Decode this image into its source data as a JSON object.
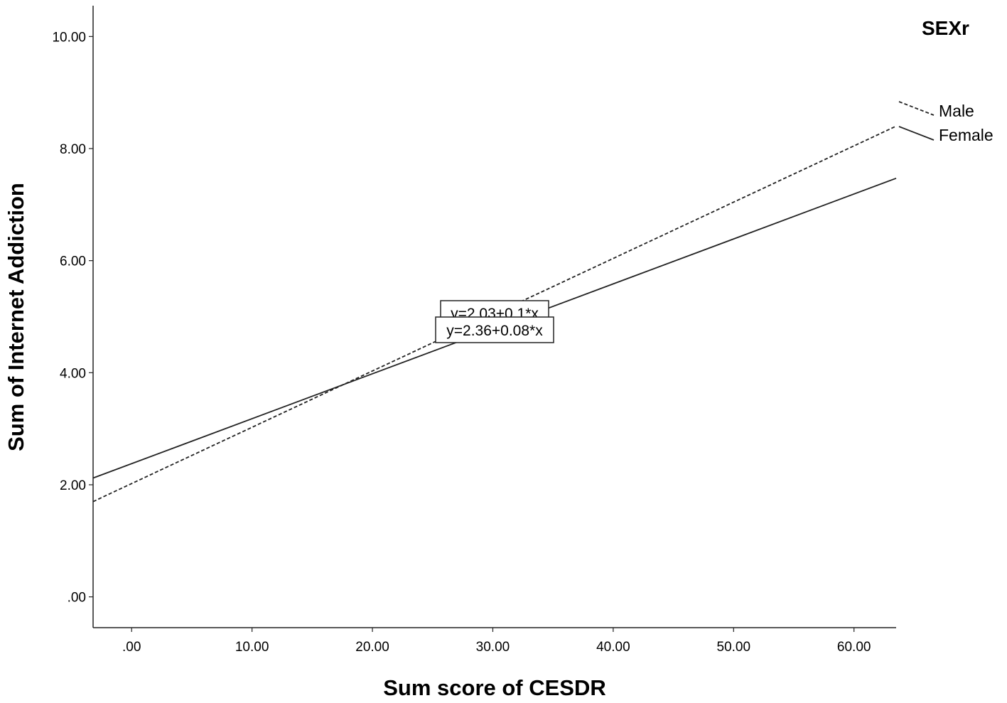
{
  "chart_data": {
    "type": "line",
    "xlabel": "Sum score of CESDR",
    "ylabel": "Sum of Internet Addiction",
    "xlim": [
      -3.2,
      63.5
    ],
    "ylim": [
      -0.55,
      10.55
    ],
    "x_ticks": [
      ".00",
      "10.00",
      "20.00",
      "30.00",
      "40.00",
      "50.00",
      "60.00"
    ],
    "x_tick_values": [
      0,
      10,
      20,
      30,
      40,
      50,
      60
    ],
    "y_ticks": [
      ".00",
      "2.00",
      "4.00",
      "6.00",
      "8.00",
      "10.00"
    ],
    "y_tick_values": [
      0,
      2,
      4,
      6,
      8,
      10
    ],
    "grid": false,
    "legend": {
      "title": "SEXr",
      "placement": "top-right"
    },
    "series": [
      {
        "name": "Male",
        "style": "dashed",
        "intercept": 2.03,
        "slope": 0.1,
        "equation": "y=2.03+0.1*x",
        "x": [
          -3.2,
          63.5
        ],
        "y": [
          1.7,
          8.4
        ]
      },
      {
        "name": "Female",
        "style": "solid",
        "intercept": 2.36,
        "slope": 0.08,
        "equation": "y=2.36+0.08*x",
        "x": [
          -3.2,
          63.5
        ],
        "y": [
          2.12,
          7.47
        ]
      }
    ],
    "line_color": "#222222"
  }
}
